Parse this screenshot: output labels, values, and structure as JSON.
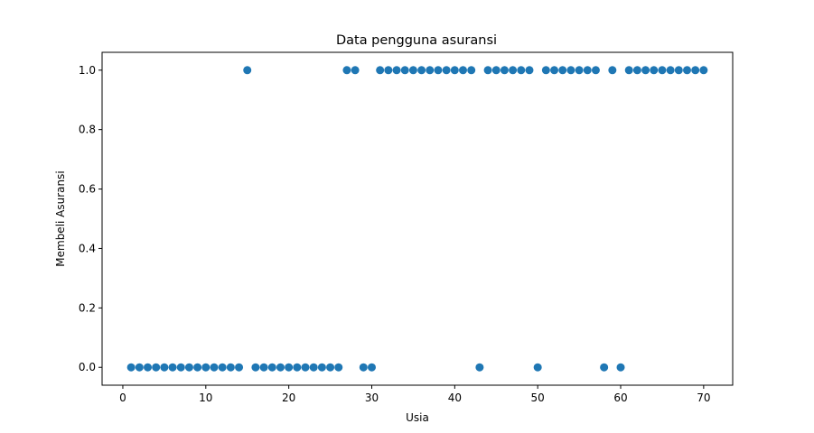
{
  "chart_data": {
    "type": "scatter",
    "title": "Data pengguna asuransi",
    "xlabel": "Usia",
    "ylabel": "Membeli Asuransi",
    "xlim": [
      -2.5,
      73.5
    ],
    "ylim": [
      -0.06,
      1.06
    ],
    "xticks": [
      0,
      10,
      20,
      30,
      40,
      50,
      60,
      70
    ],
    "xtick_labels": [
      "0",
      "10",
      "20",
      "30",
      "40",
      "50",
      "60",
      "70"
    ],
    "yticks": [
      0.0,
      0.2,
      0.4,
      0.6,
      0.8,
      1.0
    ],
    "ytick_labels": [
      "0.0",
      "0.2",
      "0.4",
      "0.6",
      "0.8",
      "1.0"
    ],
    "grid": false,
    "color": "#1f77b4",
    "series": [
      {
        "x": [
          1,
          2,
          3,
          4,
          5,
          6,
          7,
          8,
          9,
          10,
          11,
          12,
          13,
          14,
          15,
          16,
          17,
          18,
          19,
          20,
          21,
          22,
          23,
          24,
          25,
          26,
          27,
          28,
          29,
          30,
          31,
          32,
          33,
          34,
          35,
          36,
          37,
          38,
          39,
          40,
          41,
          42,
          43,
          44,
          45,
          46,
          47,
          48,
          49,
          50,
          51,
          52,
          53,
          54,
          55,
          56,
          57,
          58,
          59,
          60,
          61,
          62,
          63,
          64,
          65,
          66,
          67,
          68,
          69,
          70
        ],
        "y": [
          0,
          0,
          0,
          0,
          0,
          0,
          0,
          0,
          0,
          0,
          0,
          0,
          0,
          0,
          1,
          0,
          0,
          0,
          0,
          0,
          0,
          0,
          0,
          0,
          0,
          0,
          1,
          1,
          0,
          0,
          1,
          1,
          1,
          1,
          1,
          1,
          1,
          1,
          1,
          1,
          1,
          1,
          0,
          1,
          1,
          1,
          1,
          1,
          1,
          0,
          1,
          1,
          1,
          1,
          1,
          1,
          1,
          0,
          1,
          0,
          1,
          1,
          1,
          1,
          1,
          1,
          1,
          1,
          1,
          1
        ]
      }
    ]
  }
}
